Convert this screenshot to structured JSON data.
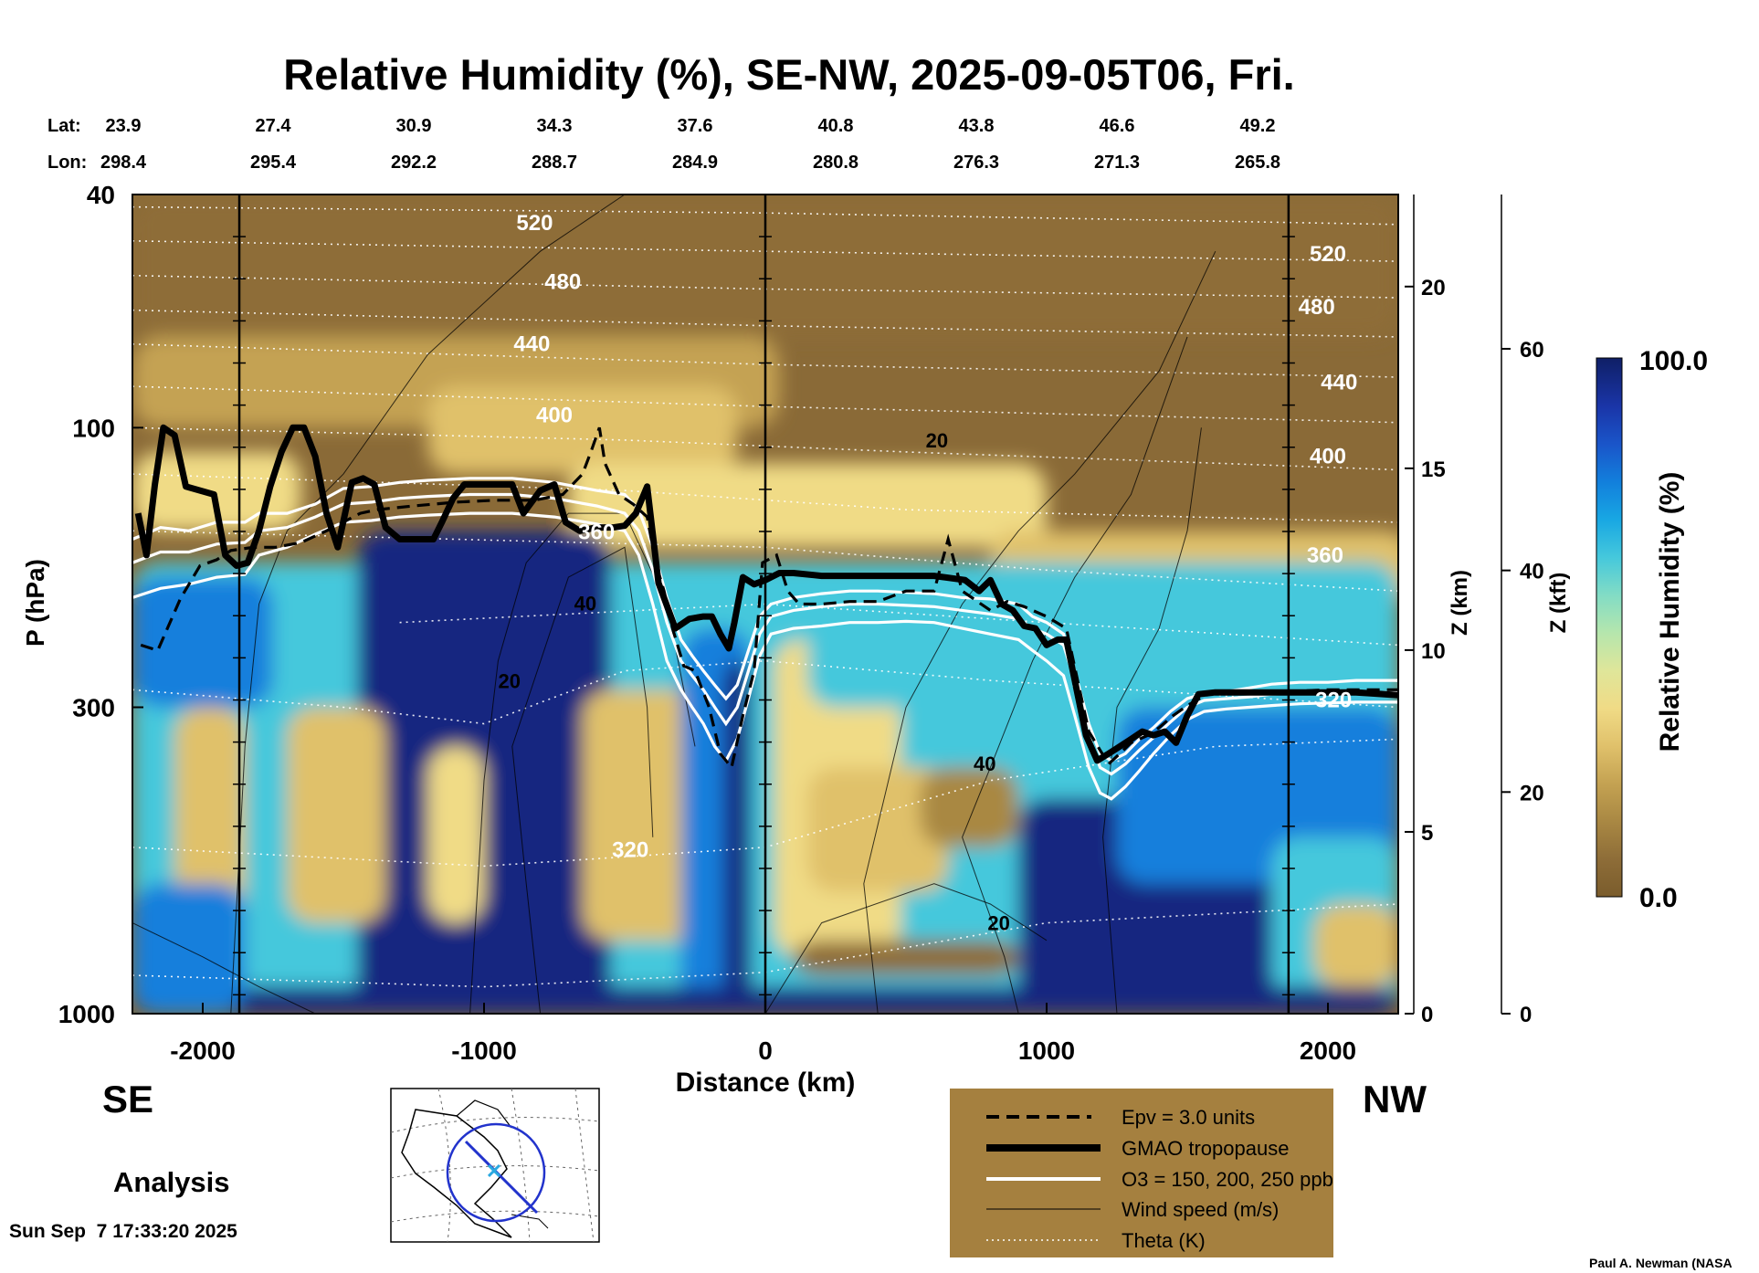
{
  "chart_data": {
    "type": "heatmap",
    "title": "Relative Humidity (%), SE-NW, 2025-09-05T06, Fri.",
    "xlabel": "Distance (km)",
    "ylabel": "P (hPa)",
    "right_axis_1_label": "Z (km)",
    "right_axis_2_label": "Z (kft)",
    "xlim": [
      -2250,
      2250
    ],
    "ylim": [
      1000,
      40
    ],
    "y_scale": "log",
    "x_ticks": [
      -2000,
      -1000,
      0,
      1000,
      2000
    ],
    "x_tick_labels": [
      "-2000",
      "-1000",
      "0",
      "1000",
      "2000"
    ],
    "p_ticks": [
      40,
      100,
      300,
      1000
    ],
    "p_tick_labels": [
      "40",
      "100",
      "300",
      "1000"
    ],
    "z_km_ticks": [
      0,
      5,
      10,
      15,
      20
    ],
    "z_km_tick_labels": [
      "0",
      "5",
      "10",
      "15",
      "20"
    ],
    "z_kft_ticks": [
      0,
      20,
      40,
      60
    ],
    "z_kft_tick_labels": [
      "0",
      "20",
      "40",
      "60"
    ],
    "lat_label": "Lat:",
    "lon_label": "Lon:",
    "positions": [
      {
        "distance": -2250,
        "lat": "23.9",
        "lon": "298.4"
      },
      {
        "distance": -1750,
        "lat": "27.4",
        "lon": "295.4"
      },
      {
        "distance": -1250,
        "lat": "30.9",
        "lon": "292.2"
      },
      {
        "distance": -750,
        "lat": "34.3",
        "lon": "288.7"
      },
      {
        "distance": -250,
        "lat": "37.6",
        "lon": "284.9"
      },
      {
        "distance": 250,
        "lat": "40.8",
        "lon": "280.8"
      },
      {
        "distance": 750,
        "lat": "43.8",
        "lon": "276.3"
      },
      {
        "distance": 1250,
        "lat": "46.6",
        "lon": "271.3"
      },
      {
        "distance": 1750,
        "lat": "49.2",
        "lon": "265.8"
      }
    ],
    "vertical_reference_lines": [
      -1870,
      0,
      1860
    ],
    "tropopause": [
      [
        -2230,
        140
      ],
      [
        -2200,
        165
      ],
      [
        -2170,
        125
      ],
      [
        -2140,
        100
      ],
      [
        -2100,
        103
      ],
      [
        -2060,
        126
      ],
      [
        -2010,
        128
      ],
      [
        -1960,
        130
      ],
      [
        -1920,
        165
      ],
      [
        -1880,
        172
      ],
      [
        -1840,
        170
      ],
      [
        -1800,
        150
      ],
      [
        -1760,
        126
      ],
      [
        -1720,
        110
      ],
      [
        -1680,
        100
      ],
      [
        -1640,
        100
      ],
      [
        -1600,
        112
      ],
      [
        -1560,
        140
      ],
      [
        -1520,
        160
      ],
      [
        -1470,
        124
      ],
      [
        -1430,
        122
      ],
      [
        -1390,
        125
      ],
      [
        -1350,
        148
      ],
      [
        -1300,
        155
      ],
      [
        -1230,
        155
      ],
      [
        -1180,
        155
      ],
      [
        -1150,
        145
      ],
      [
        -1110,
        132
      ],
      [
        -1070,
        125
      ],
      [
        -950,
        125
      ],
      [
        -900,
        125
      ],
      [
        -860,
        140
      ],
      [
        -800,
        128
      ],
      [
        -750,
        125
      ],
      [
        -710,
        145
      ],
      [
        -660,
        150
      ],
      [
        -600,
        148
      ],
      [
        -540,
        148
      ],
      [
        -500,
        147
      ],
      [
        -460,
        140
      ],
      [
        -420,
        126
      ],
      [
        -380,
        184
      ],
      [
        -320,
        220
      ],
      [
        -270,
        212
      ],
      [
        -220,
        210
      ],
      [
        -190,
        210
      ],
      [
        -160,
        225
      ],
      [
        -130,
        238
      ],
      [
        -110,
        215
      ],
      [
        -80,
        180
      ],
      [
        -40,
        185
      ],
      [
        0,
        182
      ],
      [
        50,
        177
      ],
      [
        100,
        177
      ],
      [
        200,
        179
      ],
      [
        400,
        179
      ],
      [
        600,
        179
      ],
      [
        710,
        182
      ],
      [
        760,
        190
      ],
      [
        800,
        182
      ],
      [
        840,
        200
      ],
      [
        880,
        205
      ],
      [
        920,
        218
      ],
      [
        960,
        220
      ],
      [
        1000,
        235
      ],
      [
        1040,
        230
      ],
      [
        1070,
        230
      ],
      [
        1100,
        270
      ],
      [
        1140,
        335
      ],
      [
        1180,
        370
      ],
      [
        1220,
        360
      ],
      [
        1260,
        350
      ],
      [
        1300,
        340
      ],
      [
        1340,
        330
      ],
      [
        1380,
        335
      ],
      [
        1420,
        330
      ],
      [
        1460,
        345
      ],
      [
        1500,
        310
      ],
      [
        1540,
        285
      ],
      [
        1600,
        283
      ],
      [
        1700,
        283
      ],
      [
        1800,
        283
      ],
      [
        1900,
        283
      ],
      [
        2000,
        283
      ],
      [
        2100,
        283
      ],
      [
        2250,
        286
      ]
    ],
    "epv_contour": [
      [
        -2220,
        235
      ],
      [
        -2160,
        240
      ],
      [
        -2080,
        196
      ],
      [
        -2010,
        172
      ],
      [
        -1950,
        168
      ],
      [
        -1900,
        162
      ],
      [
        -1820,
        160
      ],
      [
        -1740,
        160
      ],
      [
        -1650,
        157
      ],
      [
        -1560,
        150
      ],
      [
        -1440,
        140
      ],
      [
        -1380,
        138
      ],
      [
        -1250,
        136
      ],
      [
        -1100,
        134
      ],
      [
        -960,
        133
      ],
      [
        -820,
        133
      ],
      [
        -720,
        130
      ],
      [
        -650,
        120
      ],
      [
        -620,
        110
      ],
      [
        -590,
        100
      ],
      [
        -570,
        115
      ],
      [
        -520,
        130
      ],
      [
        -470,
        135
      ],
      [
        -420,
        142
      ],
      [
        -390,
        170
      ],
      [
        -360,
        190
      ],
      [
        -330,
        220
      ],
      [
        -290,
        255
      ],
      [
        -250,
        260
      ],
      [
        -200,
        300
      ],
      [
        -160,
        360
      ],
      [
        -120,
        380
      ],
      [
        -80,
        310
      ],
      [
        -40,
        260
      ],
      [
        -10,
        170
      ],
      [
        40,
        165
      ],
      [
        80,
        190
      ],
      [
        120,
        200
      ],
      [
        200,
        200
      ],
      [
        300,
        198
      ],
      [
        400,
        198
      ],
      [
        500,
        190
      ],
      [
        600,
        190
      ],
      [
        650,
        155
      ],
      [
        700,
        190
      ],
      [
        800,
        205
      ],
      [
        860,
        198
      ],
      [
        920,
        202
      ],
      [
        1000,
        210
      ],
      [
        1070,
        220
      ],
      [
        1110,
        270
      ],
      [
        1150,
        330
      ],
      [
        1190,
        355
      ],
      [
        1220,
        375
      ],
      [
        1260,
        360
      ],
      [
        1300,
        345
      ],
      [
        1360,
        335
      ],
      [
        1400,
        325
      ],
      [
        1450,
        310
      ],
      [
        1500,
        298
      ],
      [
        1560,
        287
      ],
      [
        1600,
        283
      ],
      [
        1800,
        283
      ],
      [
        2000,
        280
      ],
      [
        2250,
        280
      ]
    ],
    "ozone_contours": [
      [
        [
          -2250,
          155
        ],
        [
          -2150,
          148
        ],
        [
          -2050,
          150
        ],
        [
          -1950,
          145
        ],
        [
          -1850,
          145
        ],
        [
          -1800,
          140
        ],
        [
          -1700,
          140
        ],
        [
          -1600,
          135
        ],
        [
          -1500,
          127
        ],
        [
          -1400,
          126
        ],
        [
          -1300,
          124
        ],
        [
          -1200,
          123
        ],
        [
          -1050,
          122
        ],
        [
          -900,
          122
        ],
        [
          -750,
          124
        ],
        [
          -600,
          128
        ],
        [
          -500,
          130
        ],
        [
          -450,
          138
        ],
        [
          -400,
          160
        ],
        [
          -350,
          195
        ],
        [
          -300,
          230
        ],
        [
          -260,
          245
        ],
        [
          -220,
          260
        ],
        [
          -180,
          275
        ],
        [
          -140,
          290
        ],
        [
          -100,
          275
        ],
        [
          -60,
          240
        ],
        [
          -20,
          210
        ],
        [
          20,
          200
        ],
        [
          100,
          195
        ],
        [
          200,
          192
        ],
        [
          300,
          190
        ],
        [
          400,
          190
        ],
        [
          500,
          191
        ],
        [
          600,
          192
        ],
        [
          700,
          195
        ],
        [
          800,
          196
        ],
        [
          900,
          200
        ],
        [
          950,
          210
        ],
        [
          1000,
          215
        ],
        [
          1060,
          225
        ],
        [
          1100,
          260
        ],
        [
          1150,
          320
        ],
        [
          1190,
          360
        ],
        [
          1230,
          370
        ],
        [
          1280,
          360
        ],
        [
          1330,
          340
        ],
        [
          1380,
          325
        ],
        [
          1440,
          305
        ],
        [
          1500,
          290
        ],
        [
          1560,
          284
        ],
        [
          1640,
          282
        ],
        [
          1720,
          278
        ],
        [
          1800,
          274
        ],
        [
          1900,
          272
        ],
        [
          2000,
          272
        ],
        [
          2100,
          270
        ],
        [
          2250,
          270
        ]
      ],
      [
        [
          -2250,
          170
        ],
        [
          -2150,
          163
        ],
        [
          -2050,
          163
        ],
        [
          -1950,
          158
        ],
        [
          -1850,
          157
        ],
        [
          -1800,
          150
        ],
        [
          -1700,
          148
        ],
        [
          -1600,
          142
        ],
        [
          -1500,
          135
        ],
        [
          -1400,
          134
        ],
        [
          -1300,
          132
        ],
        [
          -1200,
          131
        ],
        [
          -1050,
          130
        ],
        [
          -900,
          130
        ],
        [
          -750,
          132
        ],
        [
          -600,
          136
        ],
        [
          -500,
          140
        ],
        [
          -450,
          150
        ],
        [
          -400,
          175
        ],
        [
          -350,
          215
        ],
        [
          -300,
          250
        ],
        [
          -260,
          265
        ],
        [
          -220,
          280
        ],
        [
          -180,
          300
        ],
        [
          -140,
          320
        ],
        [
          -100,
          300
        ],
        [
          -60,
          260
        ],
        [
          -20,
          225
        ],
        [
          20,
          210
        ],
        [
          100,
          205
        ],
        [
          200,
          202
        ],
        [
          300,
          200
        ],
        [
          400,
          200
        ],
        [
          500,
          201
        ],
        [
          600,
          202
        ],
        [
          700,
          205
        ],
        [
          800,
          208
        ],
        [
          900,
          212
        ],
        [
          950,
          220
        ],
        [
          1000,
          225
        ],
        [
          1060,
          235
        ],
        [
          1100,
          270
        ],
        [
          1150,
          335
        ],
        [
          1190,
          380
        ],
        [
          1230,
          390
        ],
        [
          1280,
          375
        ],
        [
          1330,
          355
        ],
        [
          1380,
          338
        ],
        [
          1440,
          318
        ],
        [
          1500,
          300
        ],
        [
          1560,
          292
        ],
        [
          1640,
          290
        ],
        [
          1720,
          288
        ],
        [
          1800,
          285
        ],
        [
          1900,
          284
        ],
        [
          2000,
          283
        ],
        [
          2100,
          283
        ],
        [
          2250,
          283
        ]
      ],
      [
        [
          -2250,
          195
        ],
        [
          -2150,
          188
        ],
        [
          -2050,
          185
        ],
        [
          -1950,
          180
        ],
        [
          -1850,
          178
        ],
        [
          -1800,
          165
        ],
        [
          -1700,
          160
        ],
        [
          -1600,
          152
        ],
        [
          -1500,
          145
        ],
        [
          -1400,
          144
        ],
        [
          -1300,
          142
        ],
        [
          -1200,
          141
        ],
        [
          -1050,
          140
        ],
        [
          -900,
          140
        ],
        [
          -750,
          142
        ],
        [
          -600,
          146
        ],
        [
          -500,
          150
        ],
        [
          -450,
          165
        ],
        [
          -400,
          200
        ],
        [
          -350,
          250
        ],
        [
          -300,
          280
        ],
        [
          -260,
          300
        ],
        [
          -220,
          320
        ],
        [
          -180,
          350
        ],
        [
          -140,
          370
        ],
        [
          -100,
          340
        ],
        [
          -60,
          290
        ],
        [
          -20,
          245
        ],
        [
          20,
          225
        ],
        [
          100,
          220
        ],
        [
          200,
          218
        ],
        [
          300,
          215
        ],
        [
          400,
          215
        ],
        [
          500,
          214
        ],
        [
          600,
          215
        ],
        [
          700,
          220
        ],
        [
          800,
          225
        ],
        [
          900,
          230
        ],
        [
          950,
          240
        ],
        [
          1000,
          250
        ],
        [
          1060,
          265
        ],
        [
          1100,
          310
        ],
        [
          1150,
          380
        ],
        [
          1190,
          420
        ],
        [
          1230,
          430
        ],
        [
          1280,
          410
        ],
        [
          1330,
          385
        ],
        [
          1380,
          360
        ],
        [
          1440,
          335
        ],
        [
          1500,
          315
        ],
        [
          1560,
          305
        ],
        [
          1640,
          302
        ],
        [
          1720,
          300
        ],
        [
          1800,
          298
        ],
        [
          1900,
          296
        ],
        [
          2000,
          295
        ],
        [
          2100,
          294
        ],
        [
          2250,
          294
        ]
      ]
    ],
    "theta_labels": [
      {
        "text": "520",
        "x": -820,
        "p": 46
      },
      {
        "text": "480",
        "x": -720,
        "p": 58
      },
      {
        "text": "440",
        "x": -830,
        "p": 74
      },
      {
        "text": "400",
        "x": -750,
        "p": 98
      },
      {
        "text": "360",
        "x": -600,
        "p": 155
      },
      {
        "text": "320",
        "x": -480,
        "p": 540
      },
      {
        "text": "520",
        "x": 2000,
        "p": 52
      },
      {
        "text": "480",
        "x": 1960,
        "p": 64
      },
      {
        "text": "440",
        "x": 2040,
        "p": 86
      },
      {
        "text": "400",
        "x": 2000,
        "p": 115
      },
      {
        "text": "360",
        "x": 1990,
        "p": 170
      },
      {
        "text": "320",
        "x": 2020,
        "p": 300
      }
    ],
    "wind_labels": [
      {
        "text": "20",
        "x": 610,
        "p": 108
      },
      {
        "text": "40",
        "x": -640,
        "p": 205
      },
      {
        "text": "20",
        "x": -910,
        "p": 278
      },
      {
        "text": "40",
        "x": 780,
        "p": 385
      },
      {
        "text": "20",
        "x": 830,
        "p": 720
      }
    ],
    "legend": [
      {
        "label": "Epv = 3.0 units",
        "style": "dashed-black"
      },
      {
        "label": "GMAO tropopause",
        "style": "thick-black"
      },
      {
        "label": "O3 = 150, 200, 250 ppb",
        "style": "white"
      },
      {
        "label": "Wind speed (m/s)",
        "style": "thin-black"
      },
      {
        "label": "Theta (K)",
        "style": "dotted-white"
      }
    ],
    "colorbar": {
      "label": "Relative Humidity (%)",
      "min": "0.0",
      "max": "100.0",
      "colors": [
        "#7a5c2c",
        "#8e6d38",
        "#a98843",
        "#c4a252",
        "#e0c16b",
        "#f0db86",
        "#dfe69a",
        "#b5e6ad",
        "#82dcc5",
        "#45c8dc",
        "#18a7e3",
        "#127fdc",
        "#1a55c9",
        "#1a35a8",
        "#132680",
        "#0f1f66"
      ]
    },
    "grid": false,
    "legend_placement": "bottom-center"
  },
  "labels": {
    "se": "SE",
    "nw": "NW",
    "analysis": "Analysis",
    "timestamp": "Sun Sep  7 17:33:20 2025",
    "credit": "Paul A. Newman (NASA"
  }
}
